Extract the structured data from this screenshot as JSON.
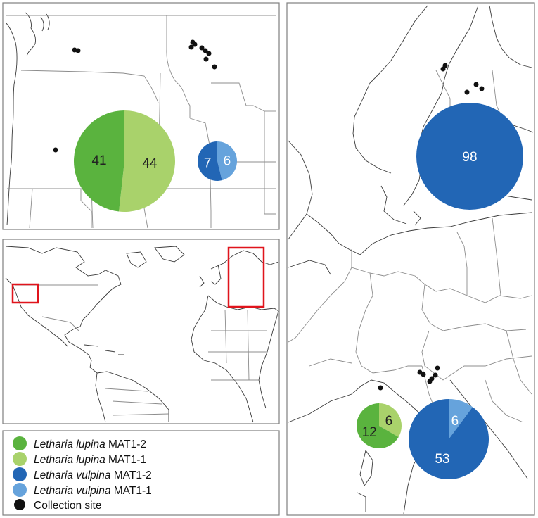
{
  "colors": {
    "lupina_mat12": "#5ab33e",
    "lupina_mat11": "#a9d26b",
    "vulpina_mat12": "#2266b5",
    "vulpina_mat11": "#66a3dc",
    "site": "#111111",
    "highlight": "#e0141c"
  },
  "pies": [
    {
      "region": "north-america",
      "species": "lupina",
      "values": [
        41,
        44
      ],
      "labels": [
        "41",
        "44"
      ]
    },
    {
      "region": "north-america",
      "species": "vulpina",
      "values": [
        7,
        6
      ],
      "labels": [
        "7",
        "6"
      ]
    },
    {
      "region": "scandinavia",
      "species": "vulpina",
      "values": [
        98,
        0
      ],
      "labels": [
        "98"
      ]
    },
    {
      "region": "alps",
      "species": "lupina",
      "values": [
        12,
        6
      ],
      "labels": [
        "12",
        "6"
      ]
    },
    {
      "region": "alps",
      "species": "vulpina",
      "values": [
        53,
        6
      ],
      "labels": [
        "53",
        "6"
      ]
    }
  ],
  "legend": {
    "items": [
      {
        "species": "Letharia lupina",
        "mating_type": "MAT1-2",
        "color_key": "lupina_mat12"
      },
      {
        "species": "Letharia lupina",
        "mating_type": "MAT1-1",
        "color_key": "lupina_mat11"
      },
      {
        "species": "Letharia vulpina",
        "mating_type": "MAT1-2",
        "color_key": "vulpina_mat12"
      },
      {
        "species": "Letharia vulpina",
        "mating_type": "MAT1-1",
        "color_key": "vulpina_mat11"
      }
    ],
    "site_label": "Collection site"
  }
}
